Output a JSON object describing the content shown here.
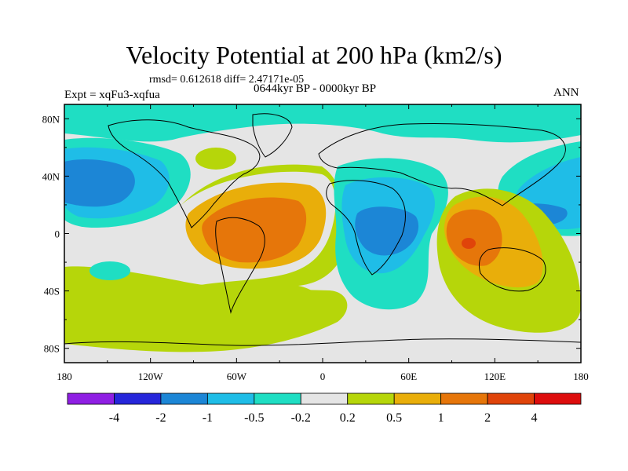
{
  "title": "Velocity Potential at 200 hPa (km2/s)",
  "stats_line": "rmsd= 0.612618 diff= 2.47171e-05",
  "experiment": "Expt = xqFu3-xqfua",
  "period": "0644kyr BP - 0000kyr BP",
  "season": "ANN",
  "lat_ticks": [
    "80N",
    "40N",
    "0",
    "40S",
    "80S"
  ],
  "lon_ticks": [
    "180",
    "120W",
    "60W",
    "0",
    "60E",
    "120E",
    "180"
  ],
  "legend": {
    "colors": [
      "#8f1fe3",
      "#2626da",
      "#1c86d6",
      "#1fbde7",
      "#1fdec3",
      "#e5e5e5",
      "#b6d60a",
      "#e9ae0a",
      "#e6760a",
      "#e0440a",
      "#dd0d0d"
    ],
    "labels": [
      "-4",
      "-2",
      "-1",
      "-0.5",
      "-0.2",
      "0.2",
      "0.5",
      "1",
      "2",
      "4"
    ]
  },
  "map_data": {
    "projection": "cylindrical-equidistant",
    "lon_range": [
      -180,
      180
    ],
    "lat_range": [
      -90,
      90
    ],
    "anomaly_regions": [
      {
        "name": "north-pacific-low",
        "level": -1,
        "lon": -160,
        "lat": 35
      },
      {
        "name": "tropical-atlantic-high",
        "level": 1,
        "lon": -50,
        "lat": 5
      },
      {
        "name": "africa-indian-ocean-low",
        "level": -1,
        "lon": 40,
        "lat": 5
      },
      {
        "name": "maritime-continent-high",
        "level": 2,
        "lon": 100,
        "lat": -8
      },
      {
        "name": "west-pacific-low",
        "level": -1,
        "lon": 150,
        "lat": 15
      },
      {
        "name": "southern-ocean-band",
        "level": 0.2,
        "lon": -60,
        "lat": -50
      }
    ]
  }
}
